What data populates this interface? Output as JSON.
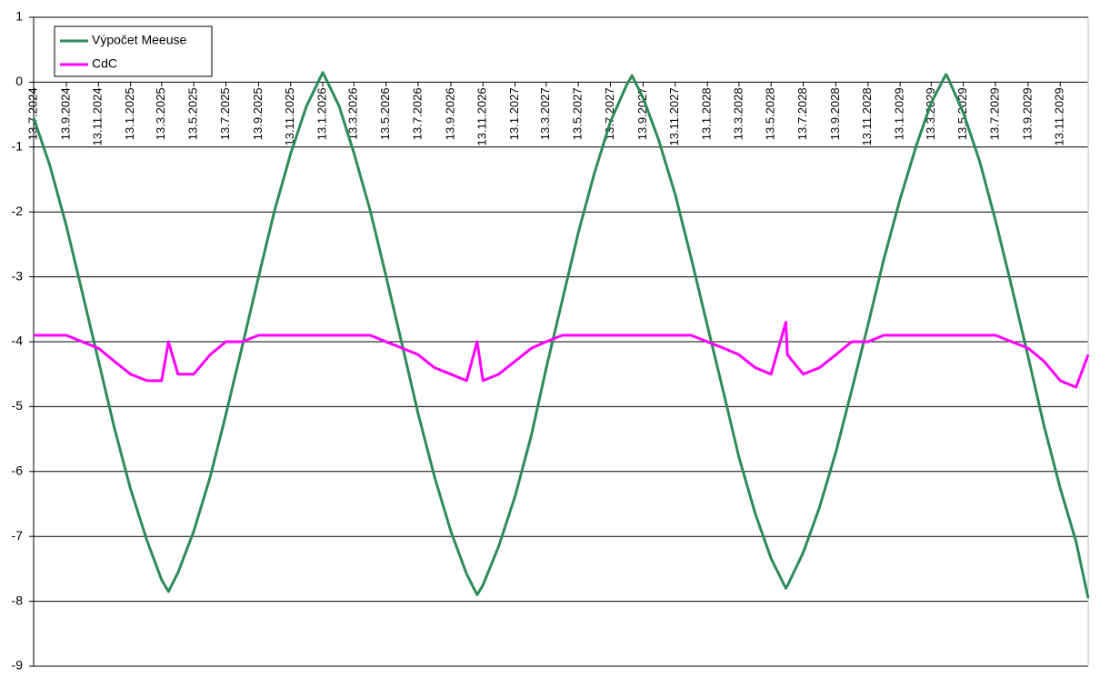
{
  "chart_data": {
    "type": "line",
    "x": [
      "2024-07-13",
      "2024-08-13",
      "2024-09-13",
      "2024-10-13",
      "2024-11-13",
      "2024-12-13",
      "2025-01-13",
      "2025-02-13",
      "2025-03-13",
      "2025-03-26",
      "2025-04-13",
      "2025-05-13",
      "2025-06-13",
      "2025-07-13",
      "2025-08-13",
      "2025-09-13",
      "2025-10-13",
      "2025-11-13",
      "2025-12-13",
      "2026-01-13",
      "2026-02-13",
      "2026-03-13",
      "2026-04-13",
      "2026-05-13",
      "2026-06-13",
      "2026-07-13",
      "2026-08-13",
      "2026-09-13",
      "2026-10-13",
      "2026-11-02",
      "2026-11-13",
      "2026-12-13",
      "2027-01-13",
      "2027-02-13",
      "2027-03-13",
      "2027-04-13",
      "2027-05-13",
      "2027-06-13",
      "2027-07-13",
      "2027-08-13",
      "2027-08-23",
      "2027-09-13",
      "2027-10-13",
      "2027-11-13",
      "2027-12-13",
      "2028-01-13",
      "2028-02-13",
      "2028-03-13",
      "2028-04-13",
      "2028-05-13",
      "2028-06-10",
      "2028-06-13",
      "2028-07-13",
      "2028-08-13",
      "2028-09-13",
      "2028-10-13",
      "2028-11-13",
      "2028-12-13",
      "2029-01-13",
      "2029-02-13",
      "2029-03-13",
      "2029-04-10",
      "2029-04-13",
      "2029-05-13",
      "2029-06-13",
      "2029-07-13",
      "2029-08-13",
      "2029-09-13",
      "2029-10-13",
      "2029-11-13",
      "2029-12-13",
      "2030-01-05"
    ],
    "series": [
      {
        "name": "Výpočet Meeuse",
        "color": "#2e8b57",
        "values": [
          -0.55,
          -1.29,
          -2.21,
          -3.23,
          -4.29,
          -5.32,
          -6.27,
          -7.06,
          -7.67,
          -7.85,
          -7.56,
          -6.92,
          -6.09,
          -5.12,
          -4.07,
          -3.0,
          -1.99,
          -1.1,
          -0.37,
          0.15,
          -0.37,
          -1.09,
          -1.98,
          -2.99,
          -4.06,
          -5.11,
          -6.08,
          -6.92,
          -7.58,
          -7.9,
          -7.75,
          -7.15,
          -6.38,
          -5.44,
          -4.41,
          -3.35,
          -2.32,
          -1.39,
          -0.61,
          -0.04,
          0.1,
          -0.24,
          -0.9,
          -1.73,
          -2.7,
          -3.75,
          -4.79,
          -5.78,
          -6.65,
          -7.34,
          -7.8,
          -7.76,
          -7.25,
          -6.55,
          -5.7,
          -4.75,
          -3.74,
          -2.73,
          -1.8,
          -0.97,
          -0.32,
          0.12,
          0.08,
          -0.47,
          -1.22,
          -2.13,
          -3.16,
          -4.23,
          -5.29,
          -6.26,
          -7.08,
          -7.95
        ]
      },
      {
        "name": "CdC",
        "color": "#ff00ff",
        "values": [
          -3.9,
          -3.9,
          -3.9,
          -4.0,
          -4.1,
          -4.3,
          -4.5,
          -4.6,
          -4.6,
          -4.0,
          -4.5,
          -4.5,
          -4.2,
          -4.0,
          -4.0,
          -3.9,
          -3.9,
          -3.9,
          -3.9,
          -3.9,
          -3.9,
          -3.9,
          -3.9,
          -4.0,
          -4.1,
          -4.2,
          -4.4,
          -4.5,
          -4.6,
          -4.0,
          -4.6,
          -4.5,
          -4.3,
          -4.1,
          -4.0,
          -3.9,
          -3.9,
          -3.9,
          -3.9,
          -3.9,
          -3.9,
          -3.9,
          -3.9,
          -3.9,
          -3.9,
          -4.0,
          -4.1,
          -4.2,
          -4.4,
          -4.5,
          -3.7,
          -4.2,
          -4.5,
          -4.4,
          -4.2,
          -4.0,
          -4.0,
          -3.9,
          -3.9,
          -3.9,
          -3.9,
          -3.9,
          -3.9,
          -3.9,
          -3.9,
          -3.9,
          -4.0,
          -4.1,
          -4.3,
          -4.6,
          -4.7,
          -4.2
        ]
      }
    ],
    "xlim": [
      "2024-07-13",
      "2030-01-05"
    ],
    "xticks": [
      {
        "value": "2024-07-13",
        "label": "13.7.2024"
      },
      {
        "value": "2024-09-13",
        "label": "13.9.2024"
      },
      {
        "value": "2024-11-13",
        "label": "13.11.2024"
      },
      {
        "value": "2025-01-13",
        "label": "13.1.2025"
      },
      {
        "value": "2025-03-13",
        "label": "13.3.2025"
      },
      {
        "value": "2025-05-13",
        "label": "13.5.2025"
      },
      {
        "value": "2025-07-13",
        "label": "13.7.2025"
      },
      {
        "value": "2025-09-13",
        "label": "13.9.2025"
      },
      {
        "value": "2025-11-13",
        "label": "13.11.2025"
      },
      {
        "value": "2026-01-13",
        "label": "13.1.2026"
      },
      {
        "value": "2026-03-13",
        "label": "13.3.2026"
      },
      {
        "value": "2026-05-13",
        "label": "13.5.2026"
      },
      {
        "value": "2026-07-13",
        "label": "13.7.2026"
      },
      {
        "value": "2026-09-13",
        "label": "13.9.2026"
      },
      {
        "value": "2026-11-13",
        "label": "13.11.2026"
      },
      {
        "value": "2027-01-13",
        "label": "13.1.2027"
      },
      {
        "value": "2027-03-13",
        "label": "13.3.2027"
      },
      {
        "value": "2027-05-13",
        "label": "13.5.2027"
      },
      {
        "value": "2027-07-13",
        "label": "13.7.2027"
      },
      {
        "value": "2027-09-13",
        "label": "13.9.2027"
      },
      {
        "value": "2027-11-13",
        "label": "13.11.2027"
      },
      {
        "value": "2028-01-13",
        "label": "13.1.2028"
      },
      {
        "value": "2028-03-13",
        "label": "13.3.2028"
      },
      {
        "value": "2028-05-13",
        "label": "13.5.2028"
      },
      {
        "value": "2028-07-13",
        "label": "13.7.2028"
      },
      {
        "value": "2028-09-13",
        "label": "13.9.2028"
      },
      {
        "value": "2028-11-13",
        "label": "13.11.2028"
      },
      {
        "value": "2029-01-13",
        "label": "13.1.2029"
      },
      {
        "value": "2029-03-13",
        "label": "13.3.2029"
      },
      {
        "value": "2029-05-13",
        "label": "13.5.2029"
      },
      {
        "value": "2029-07-13",
        "label": "13.7.2029"
      },
      {
        "value": "2029-09-13",
        "label": "13.9.2029"
      },
      {
        "value": "2029-11-13",
        "label": "13.11.2029"
      }
    ],
    "ylim": [
      -9,
      1
    ],
    "yticks": [
      -9,
      -8,
      -7,
      -6,
      -5,
      -4,
      -3,
      -2,
      -1,
      0,
      1
    ],
    "grid": true,
    "legend": "top-left"
  }
}
